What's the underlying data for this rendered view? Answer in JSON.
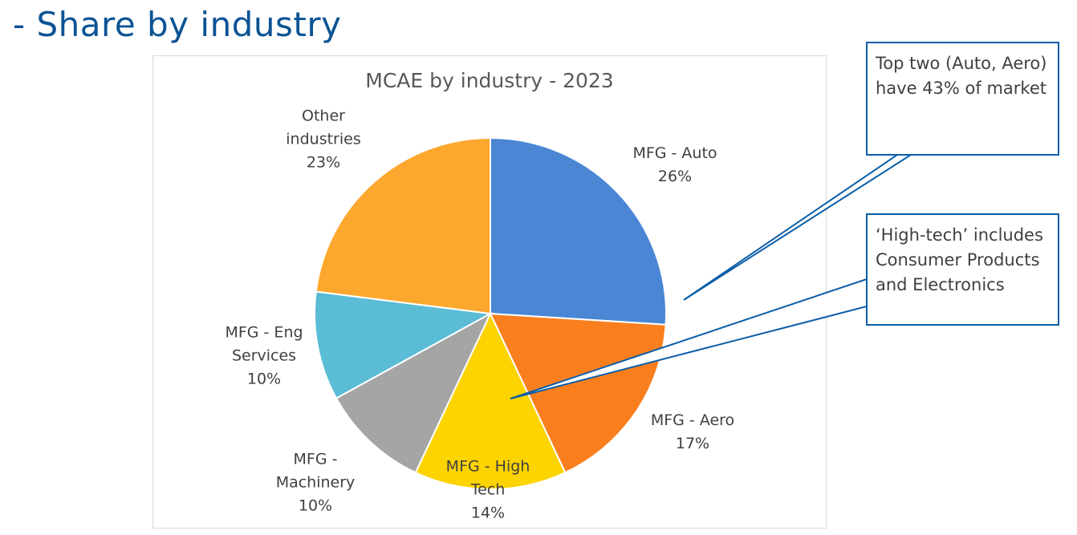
{
  "slide": {
    "title": "- Share by industry"
  },
  "chart_data": {
    "type": "pie",
    "title": "MCAE by industry - 2023",
    "start_angle_deg": 0,
    "direction": "clockwise",
    "slices": [
      {
        "label": "MFG - Auto",
        "value": 26,
        "display": "26%",
        "color": "#4a86d4"
      },
      {
        "label": "MFG - Aero",
        "value": 17,
        "display": "17%",
        "color": "#f97f1e"
      },
      {
        "label": "MFG - High Tech",
        "value": 14,
        "display": "14%",
        "color": "#fdd300"
      },
      {
        "label": "MFG - Machinery",
        "value": 10,
        "display": "10%",
        "color": "#a5a5a5"
      },
      {
        "label": "MFG - Eng Services",
        "value": 10,
        "display": "10%",
        "color": "#5bbcd6"
      },
      {
        "label": "Other industries",
        "value": 23,
        "display": "23%",
        "color": "#fca82e"
      }
    ],
    "data_labels": [
      {
        "text": "MFG - Auto\n26%"
      },
      {
        "text": "MFG - Aero\n17%"
      },
      {
        "text": "MFG - High\nTech\n14%"
      },
      {
        "text": "MFG -\nMachinery\n10%"
      },
      {
        "text": "MFG - Eng\nServices\n10%"
      },
      {
        "text": "Other\nindustries\n23%"
      }
    ],
    "legend": "none"
  },
  "callouts": [
    {
      "text": "Top two (Auto, Aero) have 43% of market"
    },
    {
      "text": "‘High-tech’ includes Consumer Products and Electronics"
    }
  ],
  "colors": {
    "title": "#0b5394",
    "callout_border": "#0b5ea8"
  }
}
